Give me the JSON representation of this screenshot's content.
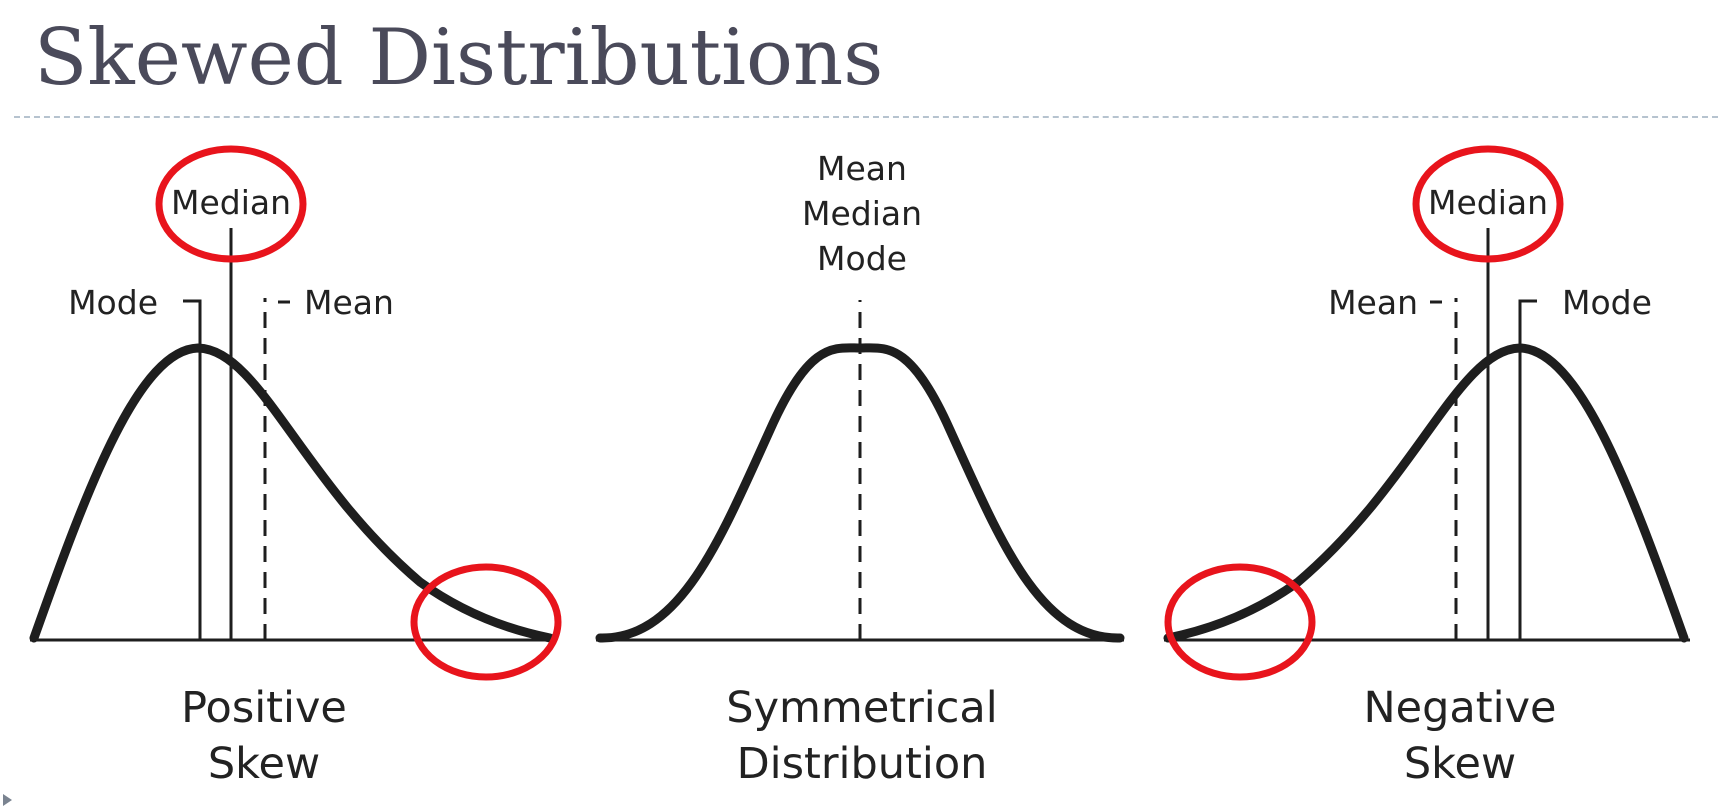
{
  "title": "Skewed Distributions",
  "panels": [
    {
      "id": "positive",
      "caption": [
        "Positive",
        "Skew"
      ],
      "markers": {
        "median": "Median",
        "mode": "Mode",
        "mean": "Mean"
      }
    },
    {
      "id": "symmetrical",
      "caption": [
        "Symmetrical",
        "Distribution"
      ],
      "markers": {
        "mean": "Mean",
        "median": "Median",
        "mode": "Mode"
      }
    },
    {
      "id": "negative",
      "caption": [
        "Negative",
        "Skew"
      ],
      "markers": {
        "median": "Median",
        "mean": "Mean",
        "mode": "Mode"
      }
    }
  ],
  "colors": {
    "title": "#4a4a5a",
    "curve": "#1e1e1e",
    "highlight": "#e8141c",
    "rule": "#b6c3cf"
  }
}
